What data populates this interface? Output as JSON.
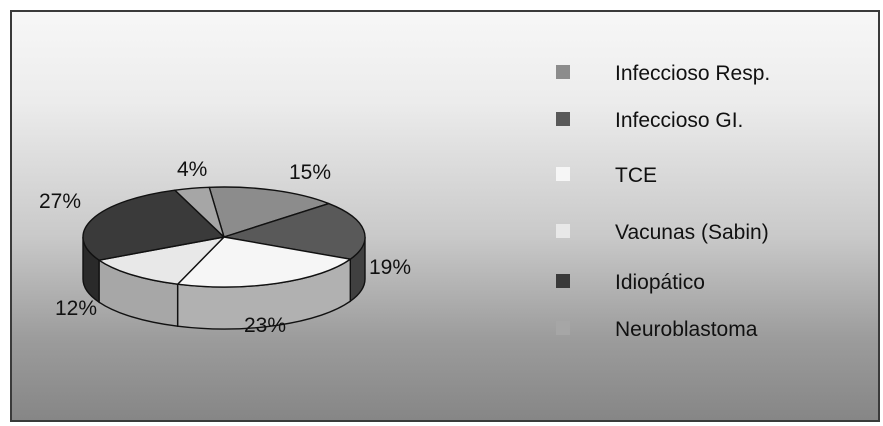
{
  "chart_data": {
    "type": "pie",
    "style": "3d",
    "title": "",
    "slices": [
      {
        "label": "Infeccioso Resp.",
        "value": 15,
        "value_label": "15%",
        "color": "#8c8c8c"
      },
      {
        "label": "Infeccioso GI.",
        "value": 19,
        "value_label": "19%",
        "color": "#595959"
      },
      {
        "label": "TCE",
        "value": 23,
        "value_label": "23%",
        "color": "#f6f6f6"
      },
      {
        "label": "Vacunas (Sabin)",
        "value": 12,
        "value_label": "12%",
        "color": "#e8e8e8"
      },
      {
        "label": "Idiopático",
        "value": 27,
        "value_label": "27%",
        "color": "#3a3a3a"
      },
      {
        "label": "Neuroblastoma",
        "value": 4,
        "value_label": "4%",
        "color": "#a6a6a6"
      }
    ],
    "legend_position": "right"
  }
}
